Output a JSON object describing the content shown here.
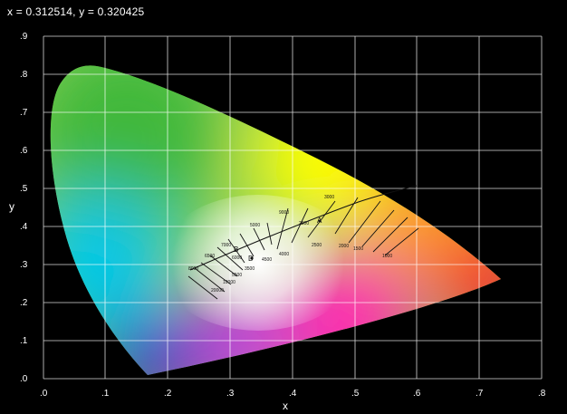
{
  "readout": "x = 0.312514, y = 0.320425",
  "axes": {
    "xlabel": "x",
    "ylabel": "y",
    "xticks": [
      ".0",
      ".1",
      ".2",
      ".3",
      ".4",
      ".5",
      ".6",
      ".7",
      ".8"
    ],
    "yticks": [
      ".0",
      ".1",
      ".2",
      ".3",
      ".4",
      ".5",
      ".6",
      ".7",
      ".8",
      ".9"
    ]
  },
  "colors": {
    "background": "#000000",
    "grid": "#ffffff",
    "green": "#3fb83a",
    "yellow": "#ffff00",
    "red": "#ff1a2e",
    "magenta": "#ff00ff",
    "blue": "#2020c8",
    "cyan": "#00c8e8"
  },
  "cct_labels": [
    "3000",
    "2500",
    "2000",
    "1500",
    "1000",
    "9000",
    "7000",
    "5000",
    "4000",
    "6000",
    "8000",
    "10000",
    "20000",
    "5500",
    "6500",
    "4500",
    "3500",
    "2800"
  ],
  "markers": [
    "A",
    "B",
    "D"
  ]
}
